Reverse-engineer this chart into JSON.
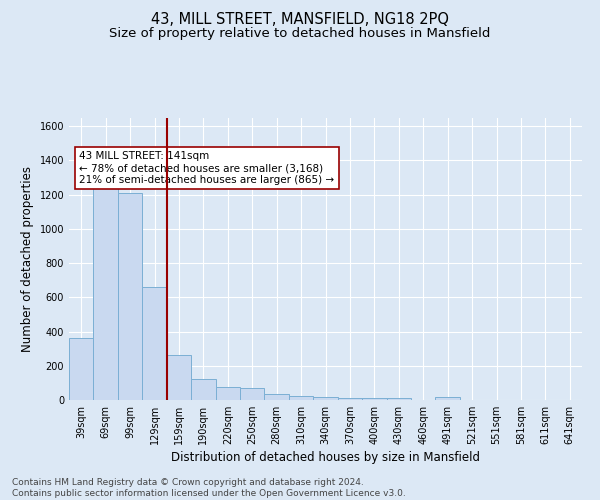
{
  "title": "43, MILL STREET, MANSFIELD, NG18 2PQ",
  "subtitle": "Size of property relative to detached houses in Mansfield",
  "xlabel": "Distribution of detached houses by size in Mansfield",
  "ylabel": "Number of detached properties",
  "footer": "Contains HM Land Registry data © Crown copyright and database right 2024.\nContains public sector information licensed under the Open Government Licence v3.0.",
  "categories": [
    "39sqm",
    "69sqm",
    "99sqm",
    "129sqm",
    "159sqm",
    "190sqm",
    "220sqm",
    "250sqm",
    "280sqm",
    "310sqm",
    "340sqm",
    "370sqm",
    "400sqm",
    "430sqm",
    "460sqm",
    "491sqm",
    "521sqm",
    "551sqm",
    "581sqm",
    "611sqm",
    "641sqm"
  ],
  "values": [
    360,
    1260,
    1210,
    660,
    265,
    125,
    75,
    70,
    33,
    22,
    15,
    13,
    13,
    12,
    0,
    18,
    0,
    0,
    0,
    0,
    0
  ],
  "bar_color": "#c9d9f0",
  "bar_edge_color": "#7bafd4",
  "vline_x": 3.5,
  "vline_color": "#990000",
  "annotation_text": "43 MILL STREET: 141sqm\n← 78% of detached houses are smaller (3,168)\n21% of semi-detached houses are larger (865) →",
  "annotation_box_color": "#ffffff",
  "annotation_box_edge": "#990000",
  "ylim": [
    0,
    1650
  ],
  "yticks": [
    0,
    200,
    400,
    600,
    800,
    1000,
    1200,
    1400,
    1600
  ],
  "bg_color": "#dce8f5",
  "plot_bg_color": "#dce8f5",
  "grid_color": "#ffffff",
  "title_fontsize": 10.5,
  "subtitle_fontsize": 9.5,
  "xlabel_fontsize": 8.5,
  "ylabel_fontsize": 8.5,
  "tick_fontsize": 7,
  "footer_fontsize": 6.5,
  "annotation_fontsize": 7.5
}
